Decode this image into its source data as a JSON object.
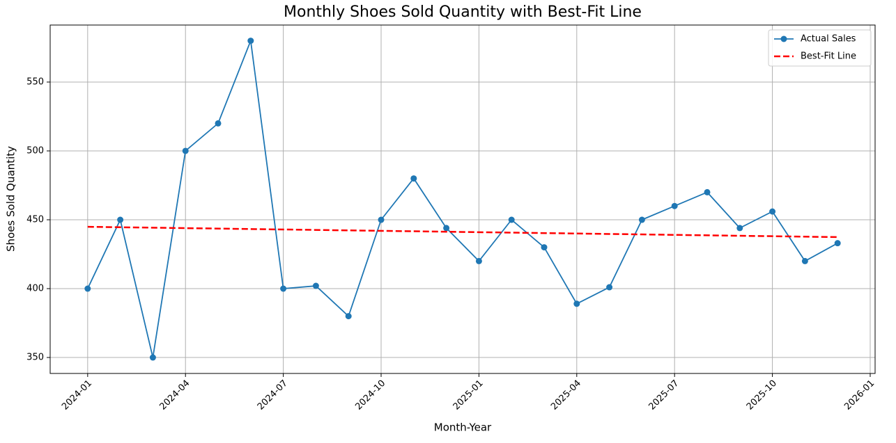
{
  "chart_data": {
    "type": "line",
    "title": "Monthly Shoes Sold Quantity with Best-Fit Line",
    "xlabel": "Month-Year",
    "ylabel": "Shoes Sold Quantity",
    "series": [
      {
        "name": "Actual Sales",
        "color": "#1f77b4",
        "marker": "o",
        "linestyle": "solid",
        "x": [
          "2024-01",
          "2024-02",
          "2024-03",
          "2024-04",
          "2024-05",
          "2024-06",
          "2024-07",
          "2024-08",
          "2024-09",
          "2024-10",
          "2024-11",
          "2024-12",
          "2025-01",
          "2025-02",
          "2025-03",
          "2025-04",
          "2025-05",
          "2025-06",
          "2025-07",
          "2025-08",
          "2025-09",
          "2025-10",
          "2025-11",
          "2025-12"
        ],
        "values": [
          400,
          450,
          350,
          500,
          520,
          580,
          400,
          402,
          380,
          450,
          480,
          444,
          420,
          450,
          430,
          389,
          401,
          450,
          460,
          470,
          444,
          456,
          420,
          433
        ]
      },
      {
        "name": "Best-Fit Line",
        "color": "#ff0000",
        "linestyle": "dashed",
        "x": [
          "2024-01",
          "2025-12"
        ],
        "values": [
          444.9,
          437.4
        ]
      }
    ],
    "xticks": [
      "2024-01",
      "2024-04",
      "2024-07",
      "2024-10",
      "2025-01",
      "2025-04",
      "2025-07",
      "2025-10",
      "2026-01"
    ],
    "ylim": [
      338.4,
      591.4
    ],
    "yticks": [
      350,
      400,
      450,
      500,
      550
    ],
    "grid": true,
    "legend": "upper right"
  }
}
